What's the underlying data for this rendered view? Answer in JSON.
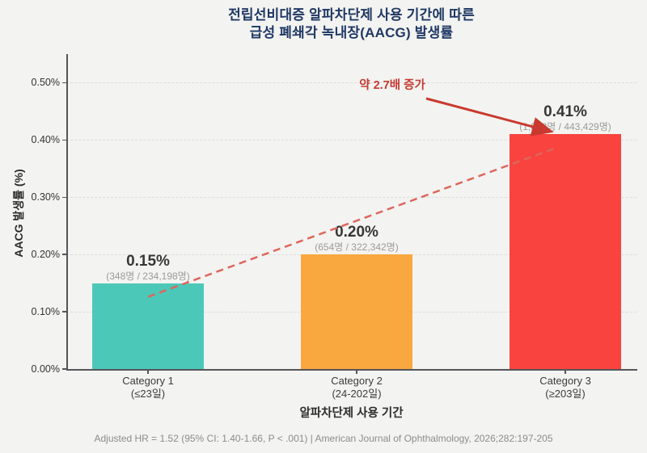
{
  "title": {
    "line1": "전립선비대증 알파차단제 사용 기간에 따른",
    "line2": "급성 폐쇄각 녹내장(AACG) 발생률"
  },
  "chart_data": {
    "type": "bar",
    "title": "전립선비대증 알파차단제 사용 기간에 따른 급성 폐쇄각 녹내장(AACG) 발생률",
    "xlabel": "알파차단제 사용 기간",
    "ylabel": "AACG 발생률 (%)",
    "ylim": [
      0,
      0.55
    ],
    "yticks": [
      {
        "value": 0.0,
        "label": "0.00%"
      },
      {
        "value": 0.1,
        "label": "0.10%"
      },
      {
        "value": 0.2,
        "label": "0.20%"
      },
      {
        "value": 0.3,
        "label": "0.30%"
      },
      {
        "value": 0.4,
        "label": "0.40%"
      },
      {
        "value": 0.5,
        "label": "0.50%"
      }
    ],
    "grid": "horizontal-dashed",
    "legend": "none",
    "categories": [
      "Category 1",
      "Category 2",
      "Category 3"
    ],
    "series": [
      {
        "name": "AACG 발생률",
        "values": [
          0.15,
          0.2,
          0.41
        ]
      }
    ],
    "bars": [
      {
        "category": "Category 1",
        "sublabel": "(≤23일)",
        "value_pct": 0.15,
        "value_label": "0.15%",
        "events": 348,
        "population": 234198,
        "count_label": "(348명 / 234,198명)",
        "color": "#4cc8b9"
      },
      {
        "category": "Category 2",
        "sublabel": "(24-202일)",
        "value_pct": 0.2,
        "value_label": "0.20%",
        "events": 654,
        "population": 322342,
        "count_label": "(654명 / 322,342명)",
        "color": "#f9a73f"
      },
      {
        "category": "Category 3",
        "sublabel": "(≥203일)",
        "value_pct": 0.41,
        "value_label": "0.41%",
        "events": 1822,
        "population": 443429,
        "count_label": "(1,822명 / 443,429명)",
        "color": "#f8433f"
      }
    ],
    "annotation": {
      "text": "약 2.7배 증가",
      "color": "#c43b32"
    },
    "trend_line": {
      "style": "dashed",
      "color": "#dd665d",
      "from_category": "Category 1",
      "to_category": "Category 3"
    },
    "colors": {
      "title": "#1f3864",
      "arrow": "#c9392f",
      "axis": "#55555a"
    }
  },
  "footer": {
    "text": "Adjusted HR = 1.52 (95% CI: 1.40-1.66, P < .001)  |  American Journal of Ophthalmology, 2026;282:197-205"
  }
}
